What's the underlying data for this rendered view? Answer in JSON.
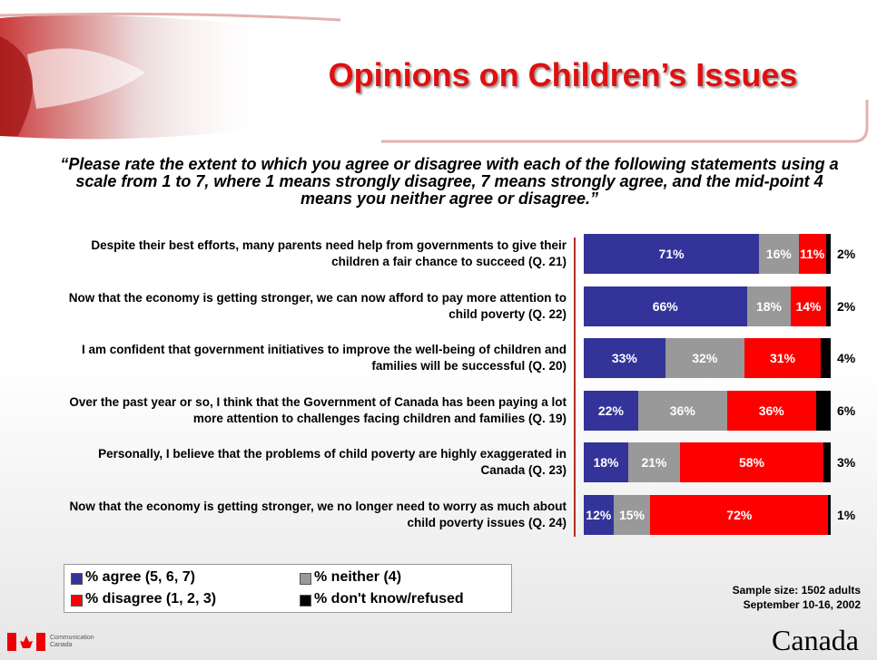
{
  "chart_data": {
    "type": "bar",
    "orientation": "horizontal",
    "stacked": true,
    "title": "Opinions on Children’s Issues",
    "subtitle": "“Please rate the extent to which you agree or disagree with each of the following statements using a scale from 1 to 7, where 1 means strongly disagree, 7 means strongly agree, and the mid-point 4 means you neither agree or disagree.”",
    "categories": [
      "Despite their best efforts, many parents need help from governments to give their children a fair chance to succeed (Q. 21)",
      "Now that the economy is getting stronger, we can now afford to pay more attention to child poverty (Q. 22)",
      "I am confident that government initiatives to improve the well-being of children and families will be successful (Q. 20)",
      "Over the past year or so, I think that the Government of Canada has been paying a lot more attention to challenges facing children and families (Q. 19)",
      "Personally, I believe that the problems of child poverty are highly exaggerated in Canada (Q. 23)",
      "Now that the economy is getting stronger, we no longer need to worry as much about child poverty issues (Q. 24)"
    ],
    "series": [
      {
        "name": "% agree (5, 6, 7)",
        "color": "#333399",
        "values": [
          71,
          66,
          33,
          22,
          18,
          12
        ],
        "value_labels": [
          "71%",
          "66%",
          "33%",
          "22%",
          "18%",
          "12%"
        ]
      },
      {
        "name": "% neither (4)",
        "color": "#999999",
        "values": [
          16,
          18,
          32,
          36,
          21,
          15
        ],
        "value_labels": [
          "16%",
          "18%",
          "32%",
          "36%",
          "21%",
          "15%"
        ]
      },
      {
        "name": "% disagree (1, 2, 3)",
        "color": "#ff0000",
        "values": [
          11,
          14,
          31,
          36,
          58,
          72
        ],
        "value_labels": [
          "11%",
          "14%",
          "31%",
          "36%",
          "58%",
          "72%"
        ]
      },
      {
        "name": "% don't know/refused",
        "color": "#000000",
        "values": [
          2,
          2,
          4,
          6,
          3,
          1
        ],
        "value_labels": [
          "2%",
          "2%",
          "4%",
          "6%",
          "3%",
          "1%"
        ]
      }
    ],
    "notes": [
      "Sample size: 1502 adults",
      "September 10-16, 2002"
    ]
  },
  "footer": {
    "department": "Communication Canada",
    "wordmark": "Canada"
  }
}
